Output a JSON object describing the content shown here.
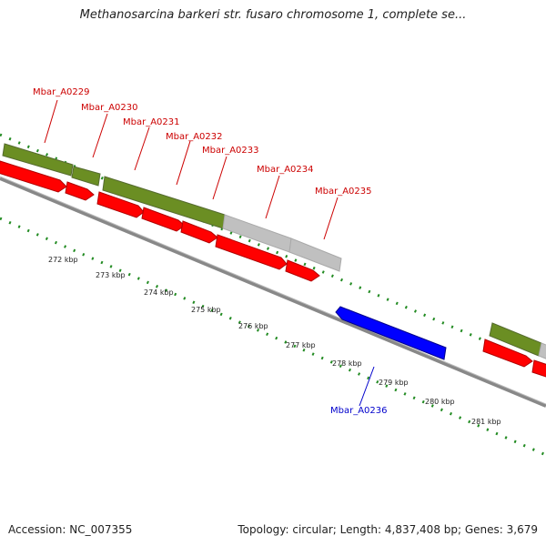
{
  "title": "Methanosarcina barkeri str. fusaro chromosome 1, complete se...",
  "footer": {
    "accession": "Accession: NC_007355",
    "summary": "Topology: circular; Length: 4,837,408 bp; Genes: 3,679"
  },
  "colors": {
    "backbone": "#808080",
    "forward_cds": "#ff0000",
    "reverse_cds": "#0000ff",
    "gene_feature": "#6b8e23",
    "gene_feature_alt": "#c0c0c0",
    "tick": "#228b22",
    "label_forward": "#cc0000",
    "label_reverse": "#0000cc"
  },
  "genes": [
    {
      "name": "Mbar_A0229",
      "strand": "forward"
    },
    {
      "name": "Mbar_A0230",
      "strand": "forward"
    },
    {
      "name": "Mbar_A0231",
      "strand": "forward"
    },
    {
      "name": "Mbar_A0232",
      "strand": "forward"
    },
    {
      "name": "Mbar_A0233",
      "strand": "forward"
    },
    {
      "name": "Mbar_A0234",
      "strand": "forward"
    },
    {
      "name": "Mbar_A0235",
      "strand": "forward"
    },
    {
      "name": "Mbar_A0236",
      "strand": "reverse"
    }
  ],
  "ticks": [
    "272 kbp",
    "273 kbp",
    "274 kbp",
    "275 kbp",
    "276 kbp",
    "277 kbp",
    "278 kbp",
    "279 kbp",
    "280 kbp",
    "281 kbp"
  ]
}
